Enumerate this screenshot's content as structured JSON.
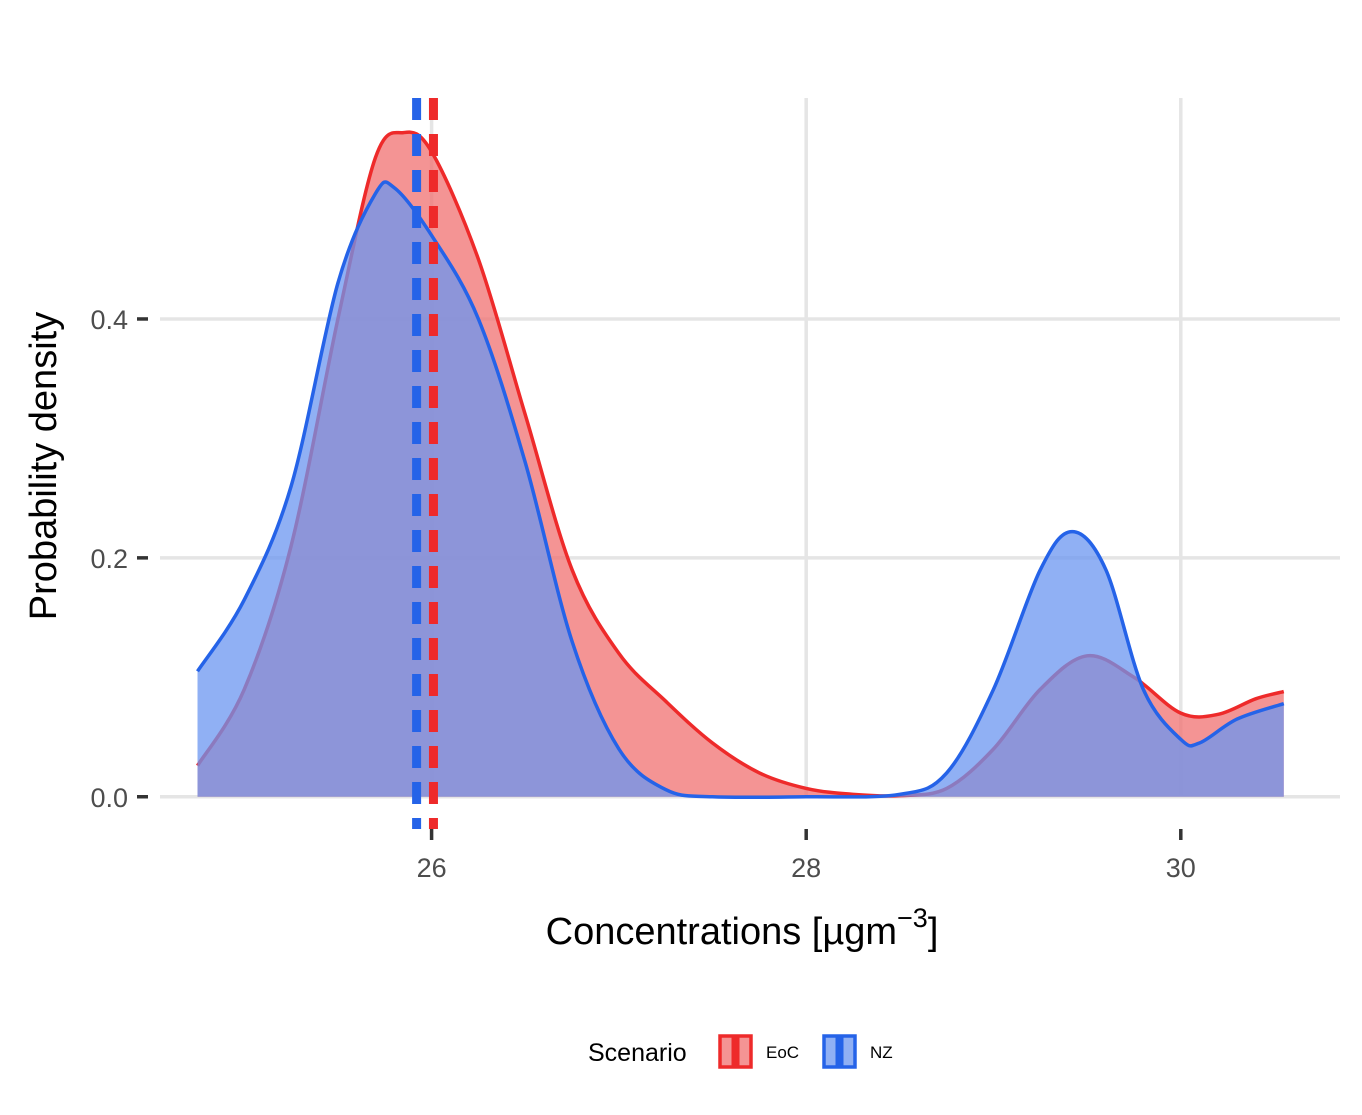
{
  "chart_data": {
    "type": "area",
    "title": "",
    "xlabel": "Concentrations [µgm",
    "xlabel_sup": "−3",
    "xlabel_suffix": "]",
    "ylabel": "Probability density",
    "xlim": [
      24.55,
      30.85
    ],
    "ylim": [
      -0.027,
      0.585
    ],
    "x_ticks": [
      {
        "value": 26,
        "label": "26"
      },
      {
        "value": 28,
        "label": "28"
      },
      {
        "value": 30,
        "label": "30"
      }
    ],
    "y_ticks": [
      {
        "value": 0.0,
        "label": "0.0"
      },
      {
        "value": 0.2,
        "label": "0.2"
      },
      {
        "value": 0.4,
        "label": "0.4"
      }
    ],
    "grid": true,
    "legend_position": "bottom",
    "legend_title": "Scenario",
    "series": [
      {
        "name": "EoC",
        "color": "#ee2a2a",
        "fill": "#f07070",
        "mean": 26.01,
        "points": [
          [
            24.75,
            0.026
          ],
          [
            25.0,
            0.09
          ],
          [
            25.25,
            0.21
          ],
          [
            25.5,
            0.4
          ],
          [
            25.7,
            0.535
          ],
          [
            25.85,
            0.556
          ],
          [
            26.0,
            0.54
          ],
          [
            26.25,
            0.45
          ],
          [
            26.5,
            0.32
          ],
          [
            26.75,
            0.19
          ],
          [
            27.0,
            0.12
          ],
          [
            27.25,
            0.08
          ],
          [
            27.5,
            0.045
          ],
          [
            27.75,
            0.02
          ],
          [
            28.0,
            0.007
          ],
          [
            28.25,
            0.002
          ],
          [
            28.5,
            0.001
          ],
          [
            28.75,
            0.007
          ],
          [
            29.0,
            0.04
          ],
          [
            29.25,
            0.09
          ],
          [
            29.5,
            0.118
          ],
          [
            29.75,
            0.1
          ],
          [
            30.0,
            0.07
          ],
          [
            30.2,
            0.069
          ],
          [
            30.4,
            0.082
          ],
          [
            30.55,
            0.088
          ]
        ]
      },
      {
        "name": "NZ",
        "color": "#2563e8",
        "fill": "#6b96f0",
        "mean": 25.92,
        "points": [
          [
            24.75,
            0.105
          ],
          [
            25.0,
            0.165
          ],
          [
            25.25,
            0.26
          ],
          [
            25.5,
            0.43
          ],
          [
            25.7,
            0.505
          ],
          [
            25.8,
            0.51
          ],
          [
            26.0,
            0.47
          ],
          [
            26.25,
            0.4
          ],
          [
            26.5,
            0.28
          ],
          [
            26.75,
            0.13
          ],
          [
            27.0,
            0.04
          ],
          [
            27.25,
            0.006
          ],
          [
            27.5,
            0.0
          ],
          [
            28.0,
            0.0
          ],
          [
            28.5,
            0.002
          ],
          [
            28.75,
            0.02
          ],
          [
            29.0,
            0.09
          ],
          [
            29.25,
            0.19
          ],
          [
            29.42,
            0.222
          ],
          [
            29.6,
            0.19
          ],
          [
            29.8,
            0.09
          ],
          [
            30.0,
            0.048
          ],
          [
            30.1,
            0.045
          ],
          [
            30.3,
            0.065
          ],
          [
            30.55,
            0.078
          ]
        ]
      }
    ]
  }
}
